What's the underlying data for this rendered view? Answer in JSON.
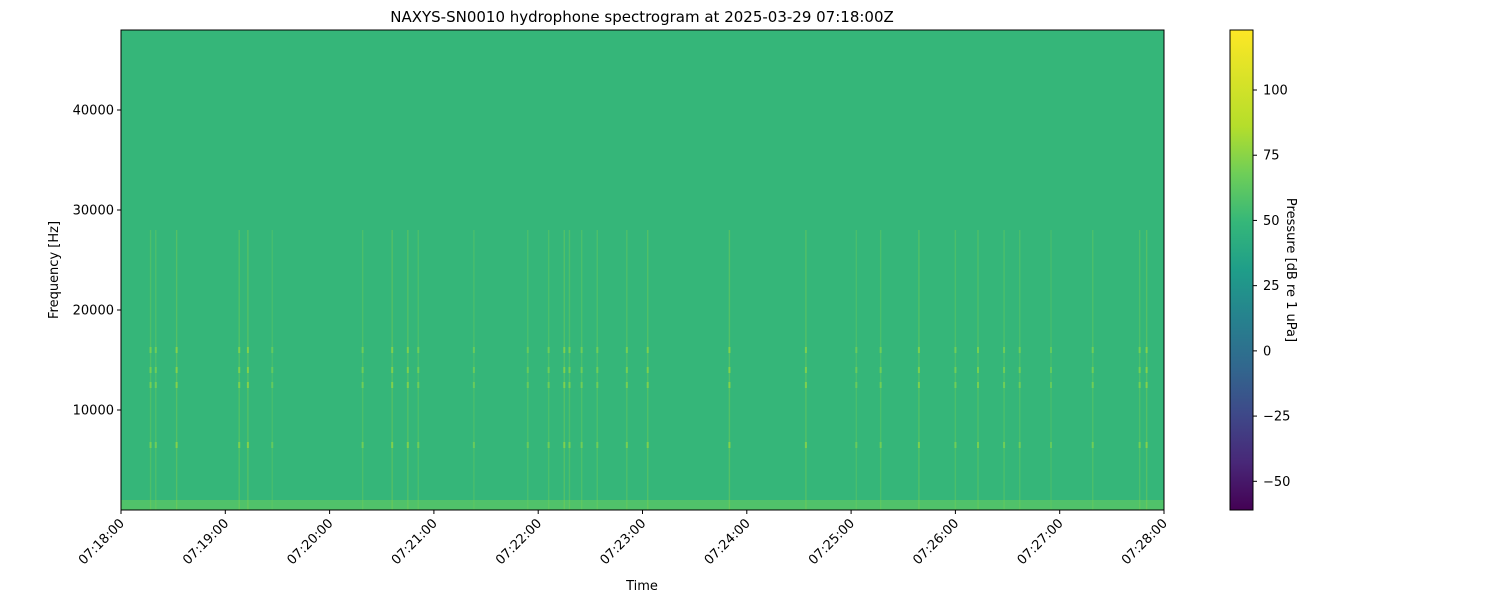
{
  "chart_data": {
    "type": "heatmap",
    "title": "NAXYS-SN0010 hydrophone spectrogram at 2025-03-29 07:18:00Z",
    "xlabel": "Time",
    "ylabel": "Frequency [Hz]",
    "colorbar_label": "Pressure [dB re 1 uPa]",
    "colormap": "viridis",
    "xlim": [
      "07:18:00",
      "07:28:00"
    ],
    "ylim": [
      0,
      48000
    ],
    "clim": [
      -61,
      123
    ],
    "x_ticks": [
      "07:18:00",
      "07:19:00",
      "07:20:00",
      "07:21:00",
      "07:22:00",
      "07:23:00",
      "07:24:00",
      "07:25:00",
      "07:26:00",
      "07:27:00",
      "07:28:00"
    ],
    "y_ticks": [
      10000,
      20000,
      30000,
      40000
    ],
    "colorbar_ticks": [
      -50,
      -25,
      0,
      25,
      50,
      75,
      100
    ],
    "background_level_db": 49,
    "low_frequency_band": {
      "freq_range": [
        0,
        1000
      ],
      "level_db": 58
    },
    "tonal_bands_hz": [
      6500,
      12500,
      14000,
      16000
    ],
    "transient_events": [
      {
        "time": "07:18:17",
        "peak_db": 72
      },
      {
        "time": "07:18:20",
        "peak_db": 70
      },
      {
        "time": "07:18:32",
        "peak_db": 76
      },
      {
        "time": "07:19:08",
        "peak_db": 74
      },
      {
        "time": "07:19:13",
        "peak_db": 76
      },
      {
        "time": "07:19:27",
        "peak_db": 66
      },
      {
        "time": "07:20:19",
        "peak_db": 70
      },
      {
        "time": "07:20:36",
        "peak_db": 75
      },
      {
        "time": "07:20:45",
        "peak_db": 74
      },
      {
        "time": "07:20:51",
        "peak_db": 70
      },
      {
        "time": "07:21:23",
        "peak_db": 68
      },
      {
        "time": "07:21:54",
        "peak_db": 68
      },
      {
        "time": "07:22:06",
        "peak_db": 70
      },
      {
        "time": "07:22:15",
        "peak_db": 74
      },
      {
        "time": "07:22:18",
        "peak_db": 72
      },
      {
        "time": "07:22:25",
        "peak_db": 70
      },
      {
        "time": "07:22:34",
        "peak_db": 70
      },
      {
        "time": "07:22:51",
        "peak_db": 72
      },
      {
        "time": "07:23:03",
        "peak_db": 74
      },
      {
        "time": "07:23:50",
        "peak_db": 76
      },
      {
        "time": "07:24:34",
        "peak_db": 74
      },
      {
        "time": "07:25:03",
        "peak_db": 68
      },
      {
        "time": "07:25:17",
        "peak_db": 70
      },
      {
        "time": "07:25:39",
        "peak_db": 74
      },
      {
        "time": "07:26:00",
        "peak_db": 70
      },
      {
        "time": "07:26:13",
        "peak_db": 72
      },
      {
        "time": "07:26:28",
        "peak_db": 70
      },
      {
        "time": "07:26:37",
        "peak_db": 70
      },
      {
        "time": "07:26:55",
        "peak_db": 66
      },
      {
        "time": "07:27:19",
        "peak_db": 70
      },
      {
        "time": "07:27:46",
        "peak_db": 72
      },
      {
        "time": "07:27:50",
        "peak_db": 76
      }
    ],
    "grid": false
  }
}
